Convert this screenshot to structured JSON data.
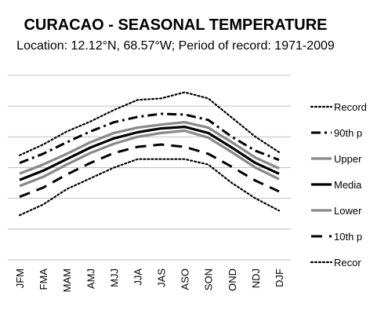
{
  "chart_data": {
    "type": "line",
    "title": "CURACAO - SEASONAL TEMPERATURE",
    "subtitle": "Location: 12.12°N, 68.57°W; Period of record: 1971-2009",
    "categories": [
      "JFM",
      "FMA",
      "MAM",
      "AMJ",
      "MJJ",
      "JJA",
      "JAS",
      "ASO",
      "SON",
      "OND",
      "NDJ",
      "DJF"
    ],
    "grid": true,
    "legend_position": "right",
    "series": [
      {
        "name": "Record",
        "style": "dotted",
        "color": "#000000",
        "values": [
          25.6,
          27.0,
          28.7,
          30.0,
          31.5,
          32.8,
          33.0,
          33.8,
          33.0,
          30.5,
          28.0,
          26.0
        ]
      },
      {
        "name": "90th p",
        "style": "dashdot",
        "color": "#000000",
        "values": [
          24.6,
          25.8,
          27.3,
          28.7,
          29.9,
          30.6,
          31.0,
          30.9,
          30.2,
          28.0,
          26.2,
          25.0
        ]
      },
      {
        "name": "Upper",
        "style": "solid-thick",
        "color": "#888888",
        "values": [
          23.2,
          24.4,
          25.8,
          27.3,
          28.5,
          29.2,
          29.6,
          29.9,
          29.2,
          27.3,
          25.3,
          23.9
        ]
      },
      {
        "name": "Media",
        "style": "solid-thick",
        "color": "#000000",
        "values": [
          22.4,
          23.6,
          25.1,
          26.6,
          27.8,
          28.6,
          29.1,
          29.3,
          28.5,
          26.6,
          24.6,
          23.2
        ]
      },
      {
        "name": "Lower",
        "style": "solid-thick",
        "color": "#888888",
        "values": [
          21.6,
          22.8,
          24.4,
          25.9,
          27.1,
          28.0,
          28.5,
          28.8,
          27.9,
          26.0,
          24.0,
          22.5
        ]
      },
      {
        "name": "10th p",
        "style": "dashed",
        "color": "#000000",
        "values": [
          20.2,
          21.4,
          23.1,
          24.6,
          25.9,
          26.7,
          27.0,
          26.7,
          25.8,
          24.1,
          22.3,
          20.9
        ]
      },
      {
        "name": "Recor",
        "style": "dotted",
        "color": "#000000",
        "values": [
          17.8,
          19.2,
          21.2,
          22.6,
          24.0,
          25.1,
          25.1,
          25.1,
          24.4,
          22.0,
          20.0,
          18.4
        ]
      }
    ]
  }
}
